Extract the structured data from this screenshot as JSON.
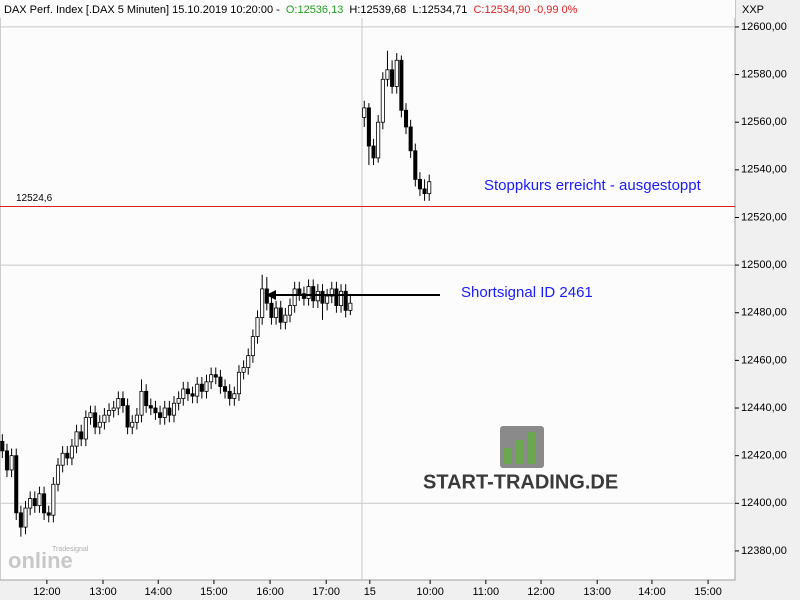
{
  "chart_data": {
    "type": "candlestick",
    "header": {
      "title": "DAX Perf. Index [.DAX  5 Minuten] 15.10.2019 10:20:00 -",
      "open": "O:12536,13",
      "high": "H:12539,68",
      "low": "L:12534,71",
      "close": "C:12534,90 -0,99 0%"
    },
    "symbol": "XXP",
    "x": [
      0,
      1,
      2,
      3,
      4,
      5,
      6,
      7,
      8,
      9,
      10,
      11,
      12,
      13,
      14,
      15,
      16,
      17,
      18,
      19,
      20,
      21,
      22,
      23,
      24,
      25,
      26,
      27,
      28,
      29,
      30,
      31,
      32,
      33,
      34,
      35,
      36,
      37,
      38,
      39,
      40,
      41,
      42,
      43,
      44,
      45,
      46,
      47,
      48,
      49,
      50,
      51,
      52,
      53,
      54,
      55,
      56,
      57,
      58,
      59,
      60,
      61,
      62,
      63,
      64,
      65,
      66,
      67,
      68,
      69,
      70,
      71,
      72,
      73,
      74,
      75,
      78,
      79,
      80,
      81,
      82,
      83,
      84,
      85,
      86,
      87,
      88,
      89,
      90,
      91,
      92
    ],
    "open": [
      12426,
      12422,
      12414,
      12420,
      12396,
      12390,
      12398,
      12402,
      12399,
      12404,
      12396,
      12395,
      12408,
      12416,
      12421,
      12419,
      12424,
      12430,
      12427,
      12436,
      12438,
      12432,
      12434,
      12437,
      12439,
      12440,
      12444,
      12441,
      12432,
      12434,
      12437,
      12447,
      12441,
      12440,
      12438,
      12436,
      12440,
      12437,
      12442,
      12444,
      12448,
      12446,
      12445,
      12450,
      12447,
      12451,
      12454,
      12453,
      12449,
      12447,
      12444,
      12446,
      12455,
      12457,
      12462,
      12470,
      12478,
      12490,
      12484,
      12478,
      12482,
      12476,
      12479,
      12483,
      12490,
      12488,
      12486,
      12491,
      12485,
      12489,
      12484,
      12487,
      12490,
      12483,
      12489,
      12481,
      12562,
      12566,
      12550,
      12545,
      12560,
      12578,
      12582,
      12575,
      12586,
      12565,
      12558,
      12548,
      12536,
      12532,
      12530
    ],
    "high": [
      12429,
      12425,
      12423,
      12423,
      12399,
      12401,
      12405,
      12405,
      12407,
      12407,
      12399,
      12411,
      12419,
      12424,
      12424,
      12427,
      12433,
      12433,
      12439,
      12441,
      12441,
      12437,
      12440,
      12442,
      12443,
      12447,
      12447,
      12444,
      12437,
      12440,
      12452,
      12450,
      12444,
      12443,
      12441,
      12443,
      12443,
      12445,
      12447,
      12451,
      12451,
      12449,
      12453,
      12453,
      12454,
      12457,
      12457,
      12456,
      12452,
      12450,
      12449,
      12458,
      12460,
      12465,
      12473,
      12481,
      12496,
      12495,
      12487,
      12485,
      12485,
      12482,
      12486,
      12493,
      12493,
      12491,
      12494,
      12494,
      12492,
      12492,
      12490,
      12493,
      12493,
      12492,
      12492,
      12487,
      12569,
      12568,
      12553,
      12563,
      12581,
      12590,
      12586,
      12589,
      12588,
      12568,
      12561,
      12551,
      12539,
      12536,
      12538
    ],
    "low": [
      12419,
      12411,
      12411,
      12393,
      12386,
      12387,
      12395,
      12396,
      12396,
      12393,
      12392,
      12392,
      12405,
      12413,
      12416,
      12416,
      12421,
      12424,
      12424,
      12433,
      12429,
      12429,
      12431,
      12434,
      12436,
      12437,
      12438,
      12429,
      12429,
      12431,
      12434,
      12438,
      12437,
      12435,
      12433,
      12433,
      12434,
      12434,
      12439,
      12441,
      12443,
      12442,
      12442,
      12444,
      12444,
      12448,
      12450,
      12446,
      12444,
      12441,
      12441,
      12443,
      12452,
      12454,
      12459,
      12467,
      12475,
      12481,
      12475,
      12475,
      12473,
      12473,
      12476,
      12480,
      12485,
      12483,
      12483,
      12482,
      12482,
      12477,
      12481,
      12484,
      12480,
      12480,
      12478,
      12479,
      12558,
      12542,
      12542,
      12543,
      12557,
      12575,
      12572,
      12572,
      12562,
      12555,
      12545,
      12533,
      12529,
      12527,
      12527
    ],
    "close": [
      12422,
      12414,
      12420,
      12396,
      12390,
      12398,
      12402,
      12399,
      12404,
      12396,
      12395,
      12408,
      12416,
      12421,
      12419,
      12424,
      12430,
      12427,
      12436,
      12438,
      12432,
      12434,
      12437,
      12439,
      12440,
      12444,
      12441,
      12432,
      12434,
      12437,
      12447,
      12441,
      12440,
      12438,
      12436,
      12440,
      12437,
      12442,
      12444,
      12448,
      12446,
      12445,
      12450,
      12447,
      12451,
      12454,
      12453,
      12449,
      12447,
      12444,
      12446,
      12455,
      12457,
      12462,
      12470,
      12478,
      12490,
      12484,
      12478,
      12482,
      12476,
      12479,
      12483,
      12490,
      12488,
      12486,
      12491,
      12485,
      12489,
      12484,
      12487,
      12490,
      12483,
      12489,
      12481,
      12484,
      12566,
      12550,
      12545,
      12560,
      12578,
      12582,
      12575,
      12586,
      12565,
      12558,
      12548,
      12536,
      12532,
      12530,
      12535
    ],
    "xlim": [
      -0.5,
      157.9
    ],
    "xticks": [
      {
        "value": 9.6,
        "label": "12:00"
      },
      {
        "value": 21.7,
        "label": "13:00"
      },
      {
        "value": 33.6,
        "label": "14:00"
      },
      {
        "value": 45.6,
        "label": "15:00"
      },
      {
        "value": 57.7,
        "label": "16:00"
      },
      {
        "value": 69.8,
        "label": "17:00"
      },
      {
        "value": 79.2,
        "label": "15"
      },
      {
        "value": 92.2,
        "label": "10:00"
      },
      {
        "value": 104.2,
        "label": "11:00"
      },
      {
        "value": 116.1,
        "label": "12:00"
      },
      {
        "value": 128.2,
        "label": "13:00"
      },
      {
        "value": 140.0,
        "label": "14:00"
      },
      {
        "value": 152.1,
        "label": "15:00"
      }
    ],
    "ylim": [
      12367.8,
      12611.3
    ],
    "yticks": [
      {
        "value": 12380,
        "label": "12380,00"
      },
      {
        "value": 12400,
        "label": "12400,00"
      },
      {
        "value": 12420,
        "label": "12420,00"
      },
      {
        "value": 12440,
        "label": "12440,00"
      },
      {
        "value": 12460,
        "label": "12460,00"
      },
      {
        "value": 12480,
        "label": "12480,00"
      },
      {
        "value": 12500,
        "label": "12500,00"
      },
      {
        "value": 12520,
        "label": "12520,00"
      },
      {
        "value": 12540,
        "label": "12540,00"
      },
      {
        "value": 12560,
        "label": "12560,00"
      },
      {
        "value": 12580,
        "label": "12580,00"
      },
      {
        "value": 12600,
        "label": "12600,00"
      }
    ],
    "level": {
      "value": 12524.6,
      "label": "12524,6",
      "color": "#e02020"
    },
    "annotations": [
      "Stoppkurs erreicht - ausgestoppt",
      "Shortsignal ID 2461"
    ],
    "logo": {
      "brand": "START-TRADING.DE",
      "watermark_small": "Tradesignal",
      "watermark": "online"
    }
  }
}
